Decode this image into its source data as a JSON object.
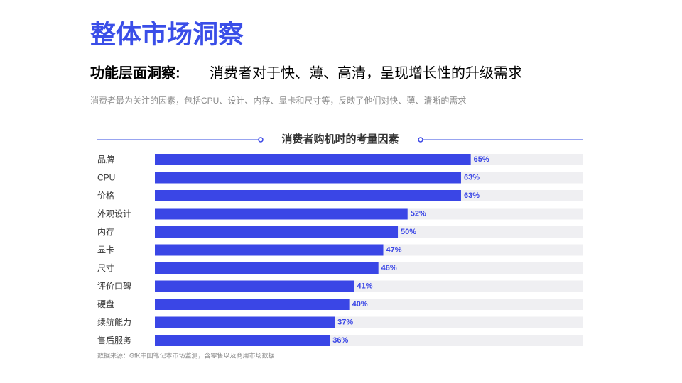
{
  "header": {
    "title": "整体市场洞察",
    "subtitle_lead": "功能层面洞察:",
    "subtitle": "消费者对于快、薄、高清，呈现增长性的升级需求",
    "description": "消费者最为关注的因素，包括CPU、设计、内存、显卡和尺寸等，反映了他们对快、薄、清晰的需求"
  },
  "chart_data": {
    "type": "bar",
    "orientation": "horizontal",
    "title": "消费者购机时的考量因素",
    "categories": [
      "品牌",
      "CPU",
      "价格",
      "外观设计",
      "内存",
      "显卡",
      "尺寸",
      "评价口碑",
      "硬盘",
      "续航能力",
      "售后服务"
    ],
    "values": [
      65,
      63,
      63,
      52,
      50,
      47,
      46,
      41,
      40,
      37,
      36
    ],
    "value_labels": [
      "65%",
      "63%",
      "63%",
      "52%",
      "50%",
      "47%",
      "46%",
      "41%",
      "40%",
      "37%",
      "36%"
    ],
    "xlim": [
      0,
      88
    ],
    "color": "#3a46e6",
    "track_color": "#efeff2",
    "source": "数据来源：GfK中国笔记本市场监测，含零售以及商用市场数据"
  }
}
